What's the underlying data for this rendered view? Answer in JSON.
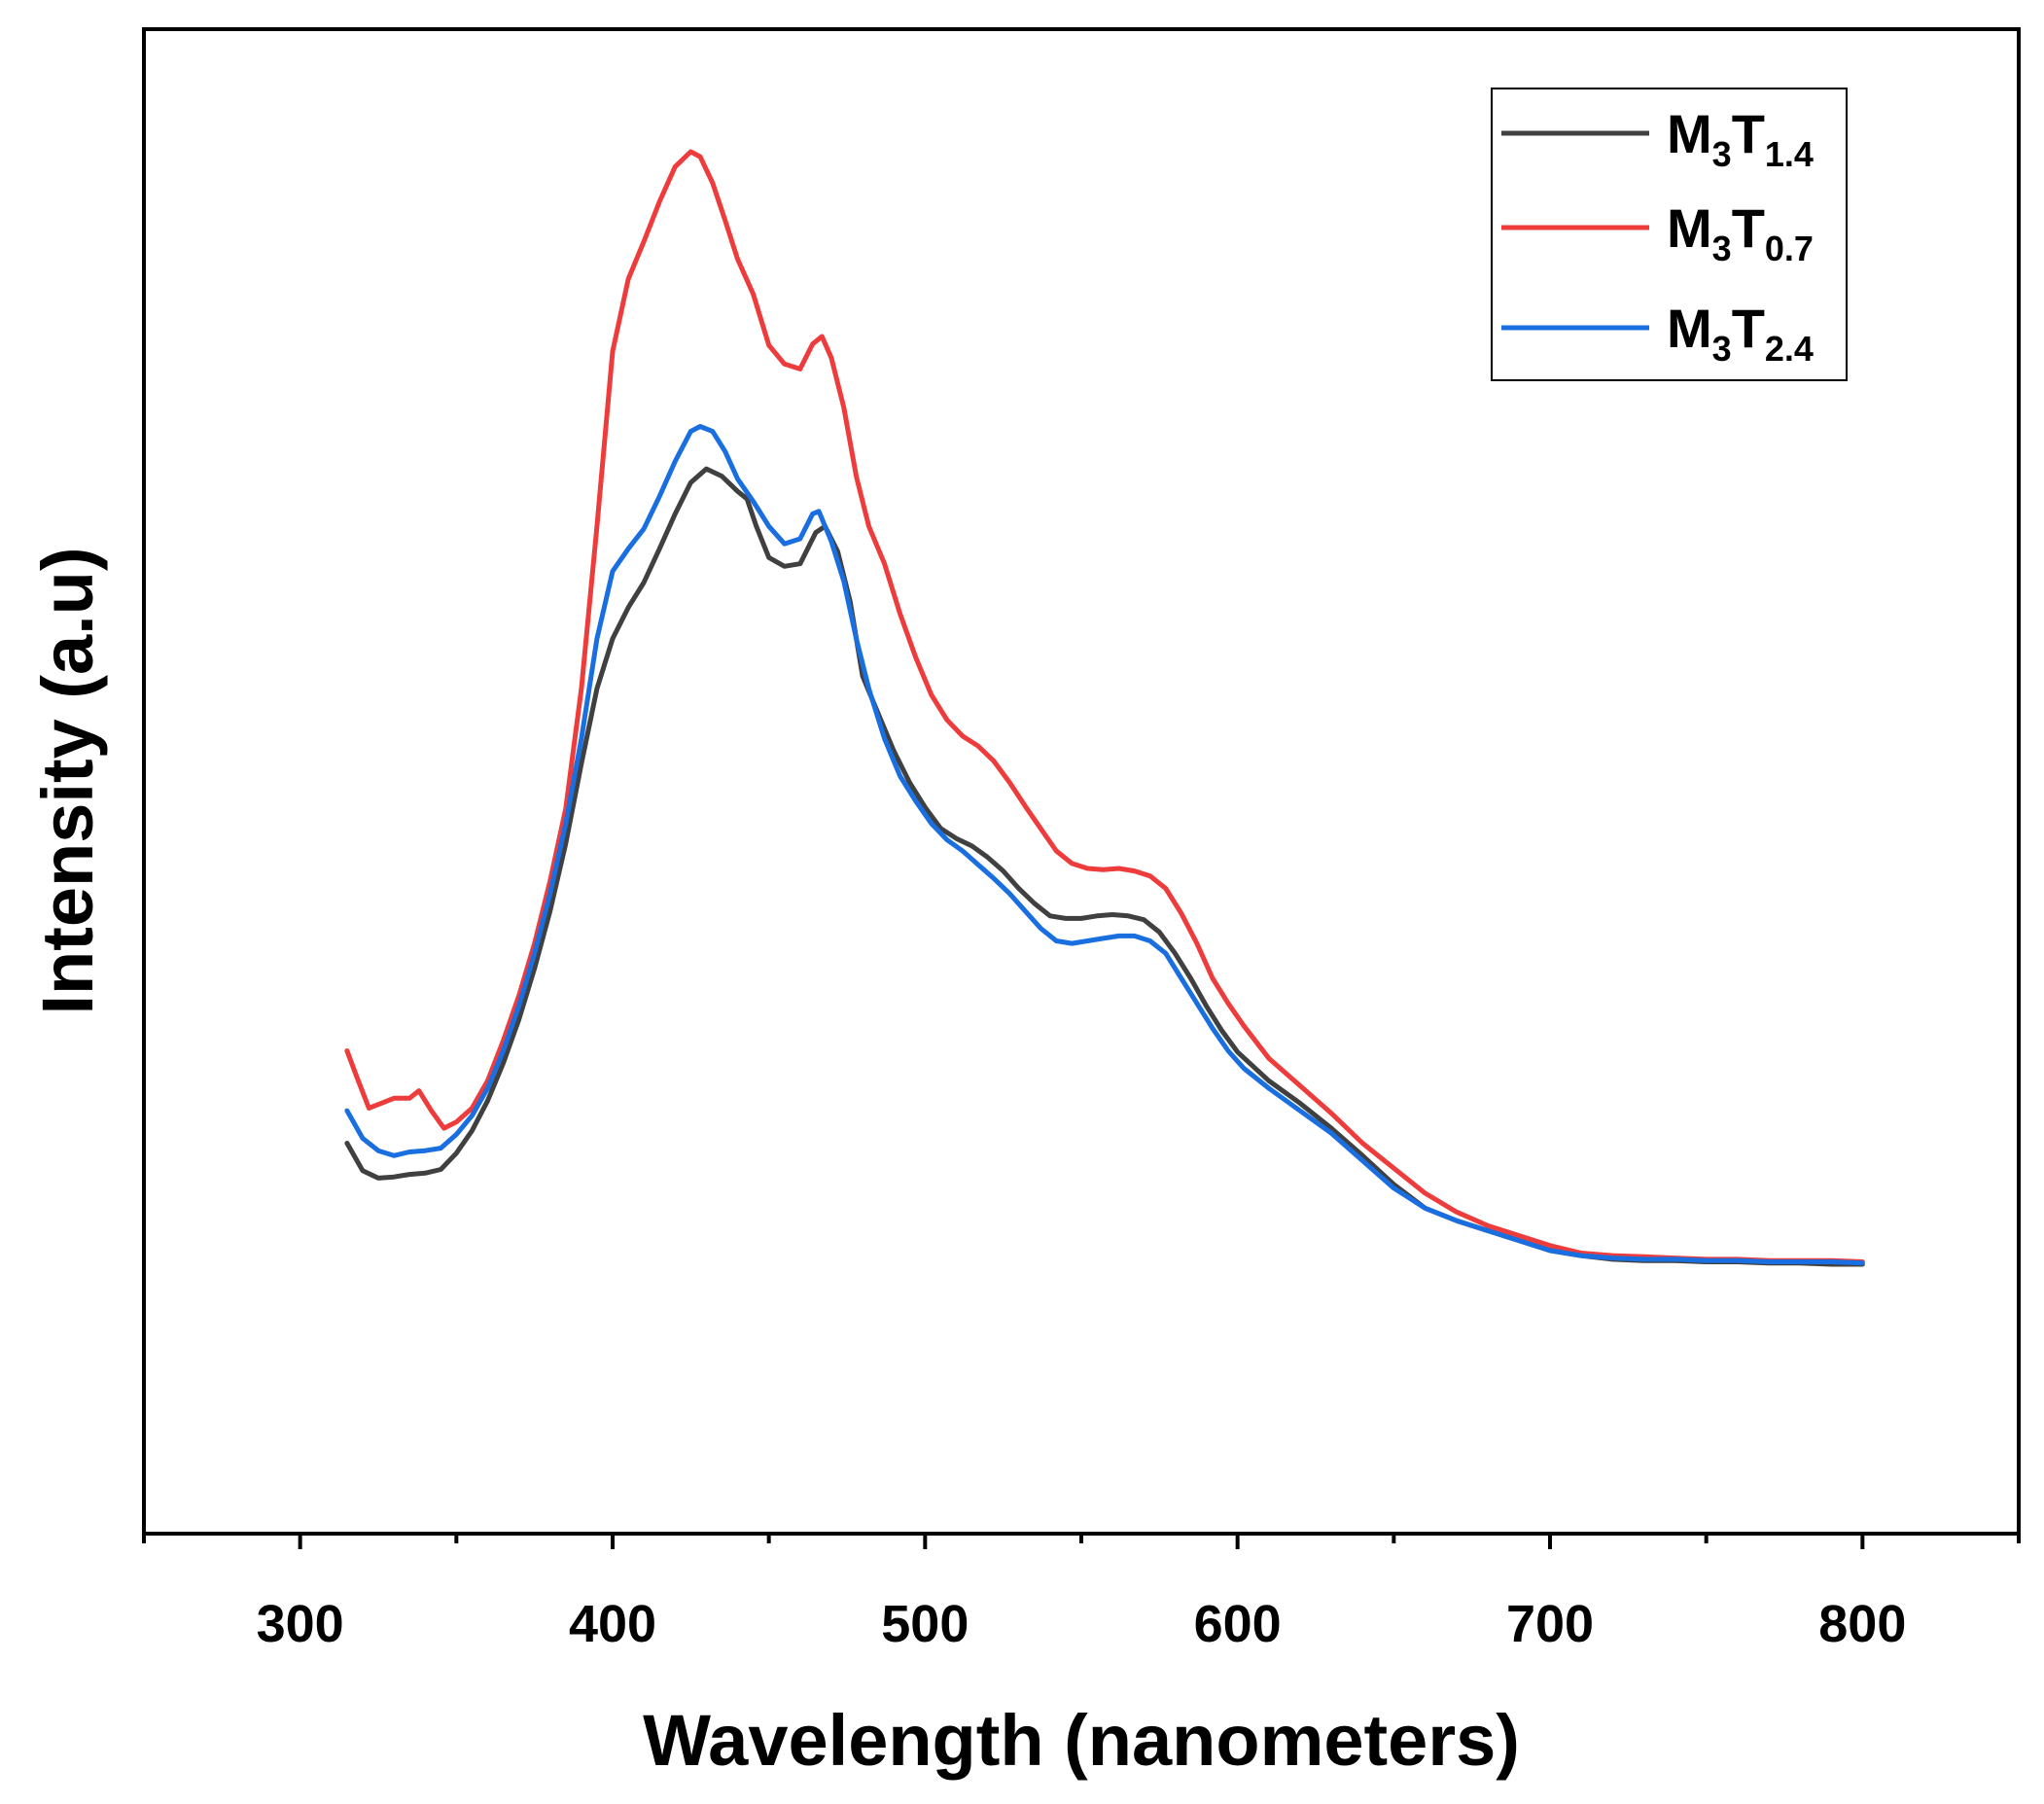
{
  "chart_data": {
    "type": "line",
    "title": "",
    "xlabel": "Wavelength (nanometers)",
    "ylabel": "Intensity (a.u)",
    "xlim": [
      250,
      850
    ],
    "ylim": [
      0,
      100
    ],
    "xticks": [
      300,
      400,
      500,
      600,
      700,
      800
    ],
    "xtick_labels": [
      "300",
      "400",
      "500",
      "600",
      "700",
      "800"
    ],
    "x_minor_ticks": [
      250,
      350,
      450,
      550,
      650,
      750,
      850
    ],
    "yticks": [],
    "grid": false,
    "legend_position": "top-right",
    "series": [
      {
        "name": "M3T1.4",
        "label_main": "M",
        "label_sub1": "3",
        "label_t": "T",
        "label_sub2": "1.4",
        "color": "#404040",
        "points": [
          [
            315,
            20.6
          ],
          [
            320,
            18.4
          ],
          [
            325,
            17.8
          ],
          [
            330,
            17.9
          ],
          [
            335,
            18.1
          ],
          [
            340,
            18.2
          ],
          [
            345,
            18.5
          ],
          [
            350,
            19.8
          ],
          [
            355,
            21.6
          ],
          [
            360,
            24.0
          ],
          [
            365,
            27.0
          ],
          [
            370,
            30.5
          ],
          [
            375,
            34.6
          ],
          [
            380,
            39.2
          ],
          [
            385,
            44.6
          ],
          [
            390,
            51.0
          ],
          [
            395,
            57.0
          ],
          [
            400,
            61.0
          ],
          [
            405,
            63.5
          ],
          [
            410,
            65.5
          ],
          [
            415,
            68.2
          ],
          [
            420,
            71.0
          ],
          [
            425,
            73.5
          ],
          [
            430,
            74.6
          ],
          [
            435,
            74.0
          ],
          [
            440,
            72.8
          ],
          [
            443,
            72.2
          ],
          [
            446,
            70.0
          ],
          [
            450,
            67.5
          ],
          [
            455,
            66.8
          ],
          [
            460,
            67.0
          ],
          [
            465,
            69.5
          ],
          [
            468,
            70.0
          ],
          [
            472,
            68.0
          ],
          [
            476,
            64.0
          ],
          [
            480,
            58.0
          ],
          [
            485,
            55.0
          ],
          [
            490,
            52.0
          ],
          [
            495,
            49.5
          ],
          [
            500,
            47.5
          ],
          [
            505,
            45.8
          ],
          [
            510,
            45.0
          ],
          [
            515,
            44.4
          ],
          [
            520,
            43.5
          ],
          [
            525,
            42.4
          ],
          [
            530,
            41.0
          ],
          [
            535,
            39.8
          ],
          [
            540,
            38.8
          ],
          [
            545,
            38.6
          ],
          [
            550,
            38.6
          ],
          [
            555,
            38.8
          ],
          [
            560,
            38.9
          ],
          [
            565,
            38.8
          ],
          [
            570,
            38.5
          ],
          [
            575,
            37.5
          ],
          [
            580,
            35.8
          ],
          [
            585,
            33.8
          ],
          [
            590,
            31.6
          ],
          [
            595,
            29.6
          ],
          [
            600,
            27.9
          ],
          [
            610,
            25.6
          ],
          [
            620,
            23.8
          ],
          [
            630,
            21.8
          ],
          [
            640,
            19.6
          ],
          [
            650,
            17.3
          ],
          [
            660,
            15.4
          ],
          [
            670,
            14.4
          ],
          [
            680,
            13.6
          ],
          [
            690,
            12.8
          ],
          [
            700,
            12.0
          ],
          [
            710,
            11.6
          ],
          [
            720,
            11.3
          ],
          [
            730,
            11.2
          ],
          [
            740,
            11.2
          ],
          [
            750,
            11.1
          ],
          [
            760,
            11.1
          ],
          [
            770,
            11.0
          ],
          [
            780,
            11.0
          ],
          [
            790,
            10.9
          ],
          [
            800,
            10.9
          ]
        ]
      },
      {
        "name": "M3T0.7",
        "label_main": "M",
        "label_sub1": "3",
        "label_t": "T",
        "label_sub2": "0.7",
        "color": "#ee3c3c",
        "points": [
          [
            315,
            28.0
          ],
          [
            318,
            26.0
          ],
          [
            322,
            23.4
          ],
          [
            326,
            23.8
          ],
          [
            330,
            24.2
          ],
          [
            335,
            24.2
          ],
          [
            338,
            24.8
          ],
          [
            342,
            23.2
          ],
          [
            346,
            21.8
          ],
          [
            350,
            22.3
          ],
          [
            355,
            23.4
          ],
          [
            360,
            25.6
          ],
          [
            365,
            28.8
          ],
          [
            370,
            32.4
          ],
          [
            375,
            36.6
          ],
          [
            380,
            41.6
          ],
          [
            385,
            47.4
          ],
          [
            390,
            57.0
          ],
          [
            395,
            70.0
          ],
          [
            400,
            84.0
          ],
          [
            405,
            89.8
          ],
          [
            410,
            92.8
          ],
          [
            415,
            96.0
          ],
          [
            420,
            98.8
          ],
          [
            425,
            100.0
          ],
          [
            428,
            99.6
          ],
          [
            432,
            97.5
          ],
          [
            436,
            94.5
          ],
          [
            440,
            91.4
          ],
          [
            445,
            88.6
          ],
          [
            450,
            84.5
          ],
          [
            455,
            83.0
          ],
          [
            460,
            82.6
          ],
          [
            464,
            84.6
          ],
          [
            467,
            85.2
          ],
          [
            470,
            83.5
          ],
          [
            474,
            79.5
          ],
          [
            478,
            74.0
          ],
          [
            482,
            70.0
          ],
          [
            487,
            67.0
          ],
          [
            492,
            63.0
          ],
          [
            497,
            59.5
          ],
          [
            502,
            56.5
          ],
          [
            507,
            54.5
          ],
          [
            512,
            53.2
          ],
          [
            517,
            52.4
          ],
          [
            522,
            51.2
          ],
          [
            527,
            49.5
          ],
          [
            532,
            47.6
          ],
          [
            537,
            45.8
          ],
          [
            542,
            44.0
          ],
          [
            547,
            43.0
          ],
          [
            552,
            42.6
          ],
          [
            557,
            42.5
          ],
          [
            562,
            42.6
          ],
          [
            567,
            42.4
          ],
          [
            572,
            42.0
          ],
          [
            577,
            41.0
          ],
          [
            582,
            39.0
          ],
          [
            587,
            36.6
          ],
          [
            592,
            33.8
          ],
          [
            597,
            31.8
          ],
          [
            602,
            30.0
          ],
          [
            610,
            27.4
          ],
          [
            620,
            25.2
          ],
          [
            630,
            23.0
          ],
          [
            640,
            20.6
          ],
          [
            650,
            18.6
          ],
          [
            660,
            16.6
          ],
          [
            670,
            15.1
          ],
          [
            680,
            14.0
          ],
          [
            690,
            13.2
          ],
          [
            700,
            12.4
          ],
          [
            710,
            11.8
          ],
          [
            720,
            11.6
          ],
          [
            730,
            11.5
          ],
          [
            740,
            11.4
          ],
          [
            750,
            11.3
          ],
          [
            760,
            11.3
          ],
          [
            770,
            11.2
          ],
          [
            780,
            11.2
          ],
          [
            790,
            11.2
          ],
          [
            800,
            11.1
          ]
        ]
      },
      {
        "name": "M3T2.4",
        "label_main": "M",
        "label_sub1": "3",
        "label_t": "T",
        "label_sub2": "2.4",
        "color": "#1a6fe0",
        "points": [
          [
            315,
            23.2
          ],
          [
            320,
            21.0
          ],
          [
            325,
            20.0
          ],
          [
            330,
            19.6
          ],
          [
            335,
            19.9
          ],
          [
            340,
            20.0
          ],
          [
            345,
            20.2
          ],
          [
            350,
            21.3
          ],
          [
            355,
            22.8
          ],
          [
            360,
            25.0
          ],
          [
            365,
            28.0
          ],
          [
            370,
            31.6
          ],
          [
            375,
            35.8
          ],
          [
            380,
            40.6
          ],
          [
            385,
            46.2
          ],
          [
            390,
            53.0
          ],
          [
            395,
            61.0
          ],
          [
            400,
            66.4
          ],
          [
            405,
            68.2
          ],
          [
            410,
            69.8
          ],
          [
            415,
            72.4
          ],
          [
            420,
            75.2
          ],
          [
            425,
            77.6
          ],
          [
            428,
            78.0
          ],
          [
            432,
            77.6
          ],
          [
            436,
            76.0
          ],
          [
            440,
            73.8
          ],
          [
            445,
            72.0
          ],
          [
            450,
            70.0
          ],
          [
            455,
            68.6
          ],
          [
            460,
            69.0
          ],
          [
            464,
            71.0
          ],
          [
            466,
            71.2
          ],
          [
            470,
            68.8
          ],
          [
            474,
            65.6
          ],
          [
            478,
            61.0
          ],
          [
            482,
            57.0
          ],
          [
            487,
            53.0
          ],
          [
            492,
            50.0
          ],
          [
            497,
            48.0
          ],
          [
            502,
            46.2
          ],
          [
            507,
            44.9
          ],
          [
            512,
            44.0
          ],
          [
            517,
            42.9
          ],
          [
            522,
            41.8
          ],
          [
            527,
            40.6
          ],
          [
            532,
            39.2
          ],
          [
            537,
            37.8
          ],
          [
            542,
            36.8
          ],
          [
            547,
            36.6
          ],
          [
            552,
            36.8
          ],
          [
            557,
            37.0
          ],
          [
            562,
            37.2
          ],
          [
            567,
            37.2
          ],
          [
            572,
            36.8
          ],
          [
            577,
            35.8
          ],
          [
            582,
            33.8
          ],
          [
            587,
            31.8
          ],
          [
            592,
            29.8
          ],
          [
            597,
            28.0
          ],
          [
            602,
            26.6
          ],
          [
            610,
            25.0
          ],
          [
            620,
            23.2
          ],
          [
            630,
            21.4
          ],
          [
            640,
            19.2
          ],
          [
            650,
            17.0
          ],
          [
            660,
            15.4
          ],
          [
            670,
            14.4
          ],
          [
            680,
            13.6
          ],
          [
            690,
            12.8
          ],
          [
            700,
            12.0
          ],
          [
            710,
            11.6
          ],
          [
            720,
            11.4
          ],
          [
            730,
            11.3
          ],
          [
            740,
            11.3
          ],
          [
            750,
            11.2
          ],
          [
            760,
            11.2
          ],
          [
            770,
            11.1
          ],
          [
            780,
            11.1
          ],
          [
            790,
            11.1
          ],
          [
            800,
            11.0
          ]
        ]
      }
    ]
  }
}
